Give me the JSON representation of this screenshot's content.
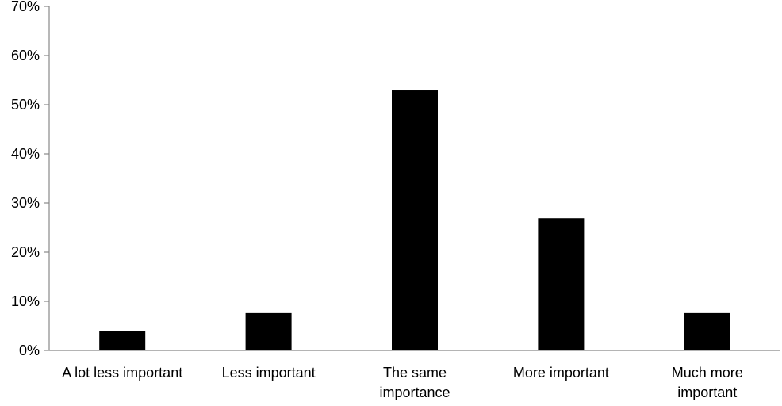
{
  "chart_data": {
    "type": "bar",
    "categories": [
      "A lot less important",
      "Less important",
      "The same\nimportance",
      "More important",
      "Much more\nimportant"
    ],
    "values": [
      4,
      7.6,
      52.9,
      26.9,
      7.6
    ],
    "color": "#000000",
    "ylim": [
      0,
      70
    ],
    "yticks": [
      {
        "value": 0,
        "label": "0%"
      },
      {
        "value": 10,
        "label": "10%"
      },
      {
        "value": 20,
        "label": "20%"
      },
      {
        "value": 30,
        "label": "30%"
      },
      {
        "value": 40,
        "label": "40%"
      },
      {
        "value": 50,
        "label": "50%"
      },
      {
        "value": 60,
        "label": "60%"
      },
      {
        "value": 70,
        "label": "70%"
      }
    ],
    "grid": false
  }
}
